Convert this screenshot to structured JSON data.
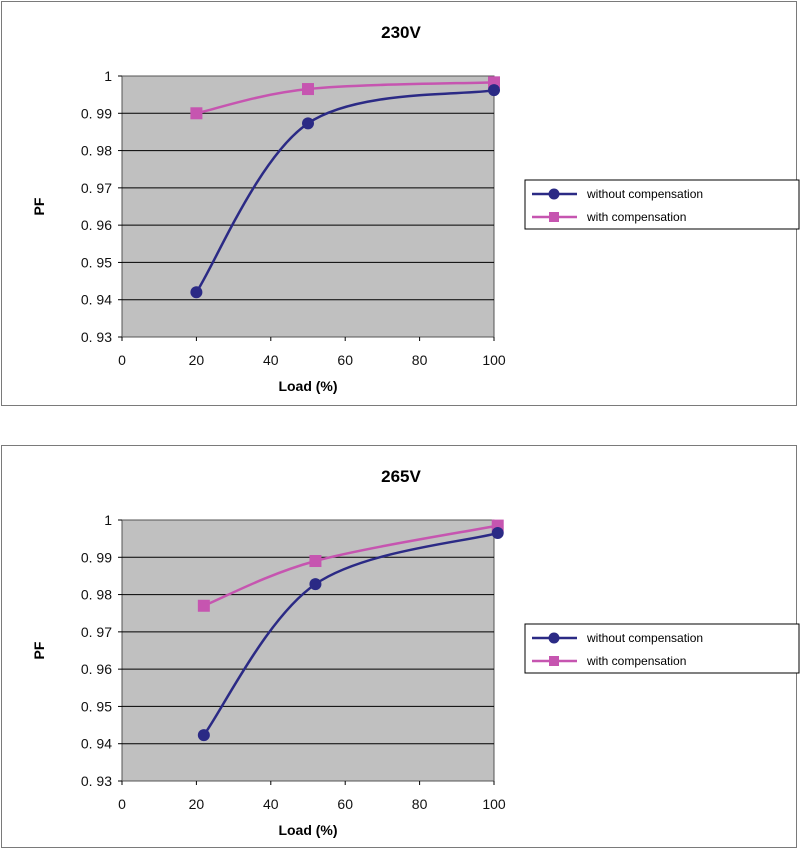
{
  "chart_data": [
    {
      "type": "line",
      "title": "230V",
      "xlabel": "Load (%)",
      "ylabel": "PF",
      "xlim": [
        0,
        100
      ],
      "ylim": [
        0.93,
        1
      ],
      "x_ticks": [
        "0",
        "20",
        "40",
        "60",
        "80",
        "100"
      ],
      "y_ticks": [
        "0. 93",
        "0. 94",
        "0. 95",
        "0. 96",
        "0. 97",
        "0. 98",
        "0. 99",
        "1"
      ],
      "grid": true,
      "legend": "right",
      "series": [
        {
          "name": "without compensation",
          "color": "#2b2a85",
          "marker": "circle",
          "x": [
            20,
            50,
            100
          ],
          "y": [
            0.942,
            0.9873,
            0.9962
          ]
        },
        {
          "name": "with compensation",
          "color": "#c655b0",
          "marker": "square",
          "x": [
            20,
            50,
            100
          ],
          "y": [
            0.99,
            0.9965,
            0.9983
          ]
        }
      ]
    },
    {
      "type": "line",
      "title": "265V",
      "xlabel": "Load (%)",
      "ylabel": "PF",
      "xlim": [
        0,
        100
      ],
      "ylim": [
        0.93,
        1
      ],
      "x_ticks": [
        "0",
        "20",
        "40",
        "60",
        "80",
        "100"
      ],
      "y_ticks": [
        "0. 93",
        "0. 94",
        "0. 95",
        "0. 96",
        "0. 97",
        "0. 98",
        "0. 99",
        "1"
      ],
      "grid": true,
      "legend": "right",
      "series": [
        {
          "name": "without compensation",
          "color": "#2b2a85",
          "marker": "circle",
          "x": [
            22,
            52,
            101
          ],
          "y": [
            0.9423,
            0.9828,
            0.9965
          ]
        },
        {
          "name": "with compensation",
          "color": "#c655b0",
          "marker": "square",
          "x": [
            22,
            52,
            101
          ],
          "y": [
            0.977,
            0.989,
            0.9985
          ]
        }
      ]
    }
  ]
}
